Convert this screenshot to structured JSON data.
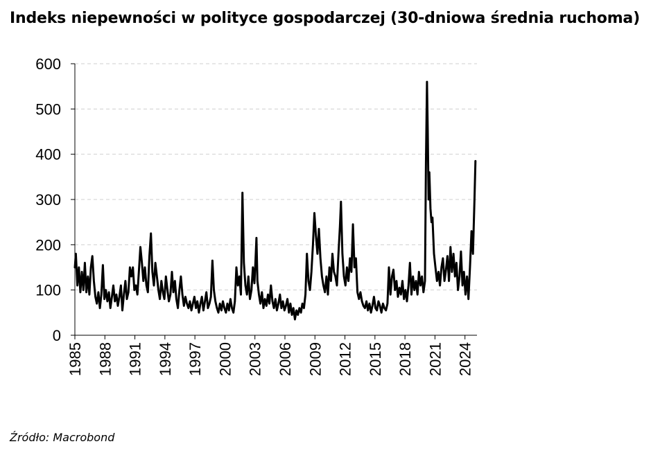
{
  "title": "Indeks niepewności w polityce gospodarczej (30-dniowa średnia ruchoma)",
  "source": "Źródło: Macrobond",
  "chart_data": {
    "type": "line",
    "title": "Indeks niepewności w polityce gospodarczej (30-dniowa średnia ruchoma)",
    "xlabel": "",
    "ylabel": "",
    "xlim": [
      1985,
      2025.2
    ],
    "ylim": [
      0,
      600
    ],
    "y_ticks": [
      "0",
      "100",
      "200",
      "300",
      "400",
      "500",
      "600"
    ],
    "x_ticks": [
      "1985",
      "1988",
      "1991",
      "1994",
      "1997",
      "2000",
      "2003",
      "2006",
      "2009",
      "2012",
      "2015",
      "2018",
      "2021",
      "2024"
    ],
    "grid": "horizontal dashed",
    "series_color": "#000000",
    "series": [
      {
        "values": [
          [
            1985.0,
            150
          ],
          [
            1985.1,
            180
          ],
          [
            1985.25,
            110
          ],
          [
            1985.4,
            150
          ],
          [
            1985.55,
            95
          ],
          [
            1985.7,
            140
          ],
          [
            1985.85,
            100
          ],
          [
            1986.0,
            160
          ],
          [
            1986.15,
            95
          ],
          [
            1986.3,
            130
          ],
          [
            1986.45,
            90
          ],
          [
            1986.6,
            150
          ],
          [
            1986.75,
            175
          ],
          [
            1986.9,
            120
          ],
          [
            1987.05,
            85
          ],
          [
            1987.2,
            70
          ],
          [
            1987.35,
            95
          ],
          [
            1987.5,
            60
          ],
          [
            1987.65,
            90
          ],
          [
            1987.8,
            155
          ],
          [
            1987.95,
            80
          ],
          [
            1988.1,
            100
          ],
          [
            1988.25,
            75
          ],
          [
            1988.4,
            95
          ],
          [
            1988.55,
            60
          ],
          [
            1988.7,
            85
          ],
          [
            1988.85,
            110
          ],
          [
            1989.0,
            75
          ],
          [
            1989.15,
            90
          ],
          [
            1989.3,
            65
          ],
          [
            1989.45,
            85
          ],
          [
            1989.6,
            110
          ],
          [
            1989.75,
            55
          ],
          [
            1989.9,
            90
          ],
          [
            1990.05,
            120
          ],
          [
            1990.2,
            80
          ],
          [
            1990.35,
            95
          ],
          [
            1990.5,
            150
          ],
          [
            1990.65,
            130
          ],
          [
            1990.8,
            150
          ],
          [
            1990.95,
            100
          ],
          [
            1991.1,
            110
          ],
          [
            1991.25,
            90
          ],
          [
            1991.4,
            140
          ],
          [
            1991.55,
            195
          ],
          [
            1991.7,
            160
          ],
          [
            1991.85,
            120
          ],
          [
            1992.0,
            150
          ],
          [
            1992.15,
            110
          ],
          [
            1992.3,
            95
          ],
          [
            1992.45,
            175
          ],
          [
            1992.6,
            225
          ],
          [
            1992.75,
            140
          ],
          [
            1992.9,
            110
          ],
          [
            1993.05,
            160
          ],
          [
            1993.2,
            130
          ],
          [
            1993.35,
            100
          ],
          [
            1993.5,
            80
          ],
          [
            1993.65,
            120
          ],
          [
            1993.8,
            95
          ],
          [
            1993.95,
            80
          ],
          [
            1994.1,
            130
          ],
          [
            1994.25,
            100
          ],
          [
            1994.4,
            75
          ],
          [
            1994.55,
            90
          ],
          [
            1994.7,
            140
          ],
          [
            1994.85,
            95
          ],
          [
            1995.0,
            120
          ],
          [
            1995.15,
            80
          ],
          [
            1995.3,
            60
          ],
          [
            1995.45,
            100
          ],
          [
            1995.6,
            130
          ],
          [
            1995.75,
            90
          ],
          [
            1995.9,
            65
          ],
          [
            1996.05,
            85
          ],
          [
            1996.2,
            70
          ],
          [
            1996.35,
            60
          ],
          [
            1996.5,
            75
          ],
          [
            1996.65,
            55
          ],
          [
            1996.8,
            70
          ],
          [
            1996.95,
            85
          ],
          [
            1997.1,
            60
          ],
          [
            1997.25,
            75
          ],
          [
            1997.4,
            50
          ],
          [
            1997.55,
            70
          ],
          [
            1997.7,
            85
          ],
          [
            1997.85,
            55
          ],
          [
            1998.0,
            75
          ],
          [
            1998.15,
            95
          ],
          [
            1998.3,
            60
          ],
          [
            1998.45,
            70
          ],
          [
            1998.6,
            85
          ],
          [
            1998.75,
            165
          ],
          [
            1998.9,
            100
          ],
          [
            1999.05,
            75
          ],
          [
            1999.2,
            60
          ],
          [
            1999.35,
            50
          ],
          [
            1999.5,
            70
          ],
          [
            1999.65,
            55
          ],
          [
            1999.8,
            75
          ],
          [
            1999.95,
            60
          ],
          [
            2000.1,
            50
          ],
          [
            2000.25,
            70
          ],
          [
            2000.4,
            55
          ],
          [
            2000.55,
            80
          ],
          [
            2000.7,
            60
          ],
          [
            2000.85,
            50
          ],
          [
            2001.0,
            75
          ],
          [
            2001.15,
            150
          ],
          [
            2001.3,
            110
          ],
          [
            2001.45,
            130
          ],
          [
            2001.6,
            90
          ],
          [
            2001.75,
            315
          ],
          [
            2001.9,
            160
          ],
          [
            2002.05,
            110
          ],
          [
            2002.2,
            90
          ],
          [
            2002.35,
            130
          ],
          [
            2002.5,
            80
          ],
          [
            2002.65,
            100
          ],
          [
            2002.8,
            150
          ],
          [
            2002.95,
            115
          ],
          [
            2003.05,
            160
          ],
          [
            2003.15,
            215
          ],
          [
            2003.25,
            120
          ],
          [
            2003.4,
            90
          ],
          [
            2003.55,
            70
          ],
          [
            2003.7,
            95
          ],
          [
            2003.85,
            60
          ],
          [
            2004.0,
            80
          ],
          [
            2004.15,
            65
          ],
          [
            2004.3,
            90
          ],
          [
            2004.45,
            70
          ],
          [
            2004.6,
            110
          ],
          [
            2004.75,
            75
          ],
          [
            2004.9,
            60
          ],
          [
            2005.05,
            80
          ],
          [
            2005.2,
            55
          ],
          [
            2005.35,
            70
          ],
          [
            2005.5,
            90
          ],
          [
            2005.65,
            60
          ],
          [
            2005.8,
            75
          ],
          [
            2005.95,
            55
          ],
          [
            2006.1,
            65
          ],
          [
            2006.25,
            80
          ],
          [
            2006.4,
            50
          ],
          [
            2006.55,
            70
          ],
          [
            2006.7,
            45
          ],
          [
            2006.85,
            60
          ],
          [
            2007.0,
            35
          ],
          [
            2007.15,
            55
          ],
          [
            2007.3,
            45
          ],
          [
            2007.45,
            60
          ],
          [
            2007.6,
            50
          ],
          [
            2007.75,
            70
          ],
          [
            2007.9,
            60
          ],
          [
            2008.05,
            90
          ],
          [
            2008.2,
            180
          ],
          [
            2008.35,
            120
          ],
          [
            2008.5,
            100
          ],
          [
            2008.65,
            140
          ],
          [
            2008.8,
            200
          ],
          [
            2008.95,
            270
          ],
          [
            2009.1,
            220
          ],
          [
            2009.25,
            180
          ],
          [
            2009.4,
            235
          ],
          [
            2009.55,
            170
          ],
          [
            2009.7,
            130
          ],
          [
            2009.85,
            110
          ],
          [
            2010.0,
            95
          ],
          [
            2010.15,
            130
          ],
          [
            2010.3,
            90
          ],
          [
            2010.45,
            150
          ],
          [
            2010.6,
            120
          ],
          [
            2010.75,
            180
          ],
          [
            2010.9,
            140
          ],
          [
            2011.05,
            130
          ],
          [
            2011.2,
            110
          ],
          [
            2011.35,
            180
          ],
          [
            2011.5,
            240
          ],
          [
            2011.6,
            295
          ],
          [
            2011.75,
            180
          ],
          [
            2011.9,
            130
          ],
          [
            2012.05,
            110
          ],
          [
            2012.2,
            150
          ],
          [
            2012.35,
            120
          ],
          [
            2012.5,
            170
          ],
          [
            2012.65,
            140
          ],
          [
            2012.8,
            245
          ],
          [
            2012.95,
            150
          ],
          [
            2013.1,
            170
          ],
          [
            2013.25,
            95
          ],
          [
            2013.4,
            80
          ],
          [
            2013.55,
            95
          ],
          [
            2013.7,
            75
          ],
          [
            2013.85,
            65
          ],
          [
            2014.0,
            60
          ],
          [
            2014.15,
            75
          ],
          [
            2014.3,
            55
          ],
          [
            2014.45,
            70
          ],
          [
            2014.6,
            50
          ],
          [
            2014.75,
            65
          ],
          [
            2014.9,
            85
          ],
          [
            2015.05,
            60
          ],
          [
            2015.2,
            55
          ],
          [
            2015.35,
            75
          ],
          [
            2015.5,
            65
          ],
          [
            2015.65,
            50
          ],
          [
            2015.8,
            70
          ],
          [
            2015.95,
            60
          ],
          [
            2016.1,
            55
          ],
          [
            2016.25,
            70
          ],
          [
            2016.4,
            150
          ],
          [
            2016.55,
            90
          ],
          [
            2016.7,
            130
          ],
          [
            2016.85,
            145
          ],
          [
            2017.0,
            100
          ],
          [
            2017.15,
            120
          ],
          [
            2017.3,
            85
          ],
          [
            2017.45,
            105
          ],
          [
            2017.6,
            90
          ],
          [
            2017.75,
            120
          ],
          [
            2017.9,
            80
          ],
          [
            2018.05,
            100
          ],
          [
            2018.2,
            75
          ],
          [
            2018.35,
            110
          ],
          [
            2018.5,
            160
          ],
          [
            2018.65,
            90
          ],
          [
            2018.8,
            130
          ],
          [
            2018.95,
            100
          ],
          [
            2019.1,
            120
          ],
          [
            2019.25,
            90
          ],
          [
            2019.4,
            140
          ],
          [
            2019.55,
            110
          ],
          [
            2019.7,
            130
          ],
          [
            2019.85,
            95
          ],
          [
            2020.0,
            120
          ],
          [
            2020.1,
            380
          ],
          [
            2020.2,
            560
          ],
          [
            2020.28,
            450
          ],
          [
            2020.36,
            300
          ],
          [
            2020.44,
            360
          ],
          [
            2020.55,
            280
          ],
          [
            2020.65,
            250
          ],
          [
            2020.75,
            260
          ],
          [
            2020.9,
            180
          ],
          [
            2021.05,
            150
          ],
          [
            2021.2,
            120
          ],
          [
            2021.35,
            140
          ],
          [
            2021.5,
            110
          ],
          [
            2021.65,
            150
          ],
          [
            2021.8,
            170
          ],
          [
            2021.95,
            120
          ],
          [
            2022.1,
            145
          ],
          [
            2022.25,
            175
          ],
          [
            2022.4,
            120
          ],
          [
            2022.55,
            195
          ],
          [
            2022.7,
            140
          ],
          [
            2022.85,
            180
          ],
          [
            2023.0,
            130
          ],
          [
            2023.15,
            160
          ],
          [
            2023.3,
            100
          ],
          [
            2023.45,
            130
          ],
          [
            2023.6,
            185
          ],
          [
            2023.75,
            110
          ],
          [
            2023.9,
            140
          ],
          [
            2024.05,
            90
          ],
          [
            2024.2,
            130
          ],
          [
            2024.35,
            80
          ],
          [
            2024.5,
            150
          ],
          [
            2024.65,
            230
          ],
          [
            2024.8,
            180
          ],
          [
            2024.95,
            300
          ],
          [
            2025.05,
            385
          ]
        ]
      }
    ]
  }
}
